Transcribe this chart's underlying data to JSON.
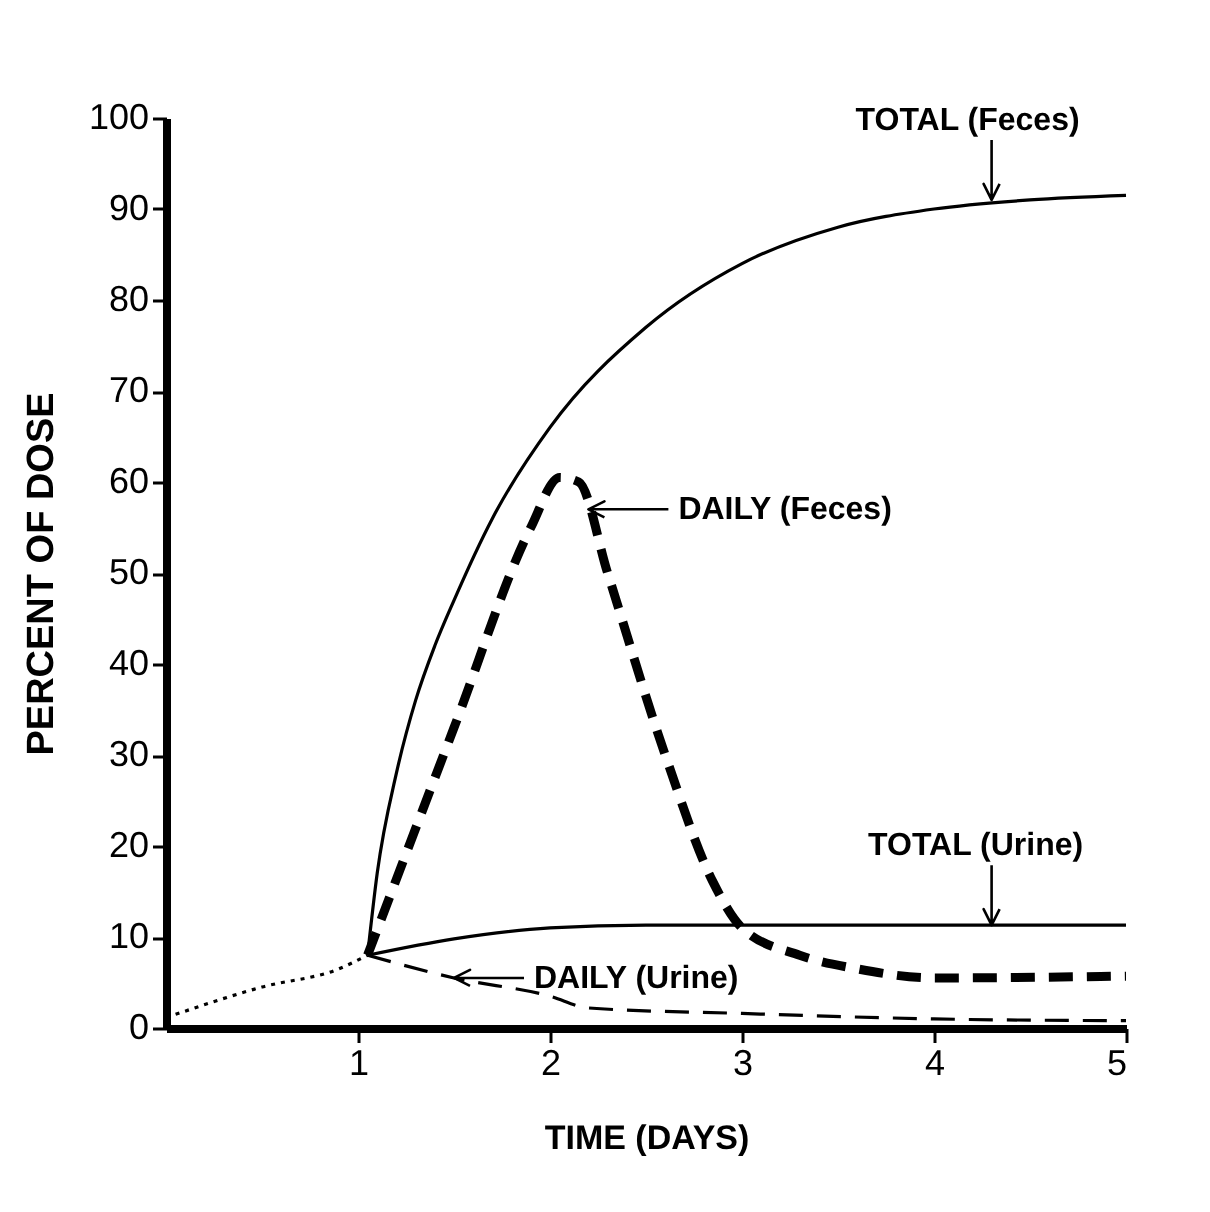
{
  "chart_data": {
    "type": "line",
    "xlabel": "TIME (DAYS)",
    "ylabel": "PERCENT OF DOSE",
    "xlim": [
      0,
      5
    ],
    "xticks": [
      1,
      2,
      3,
      4,
      5
    ],
    "ylim": [
      0,
      100
    ],
    "yticks": [
      0,
      10,
      20,
      30,
      40,
      50,
      60,
      70,
      80,
      90,
      100
    ],
    "grid": false,
    "marker": "none",
    "series": [
      {
        "color": "#000000",
        "line_style": "dotted",
        "x": [
          0.05,
          0.5,
          0.9,
          1.05
        ],
        "values": [
          1.5,
          4.5,
          6.5,
          8
        ]
      },
      {
        "color": "#000000",
        "line_style": "solid",
        "x": [
          1.05,
          1.1,
          1.2,
          1.3,
          1.4,
          1.5,
          1.7,
          2,
          2.5,
          3,
          3.5,
          4,
          4.5,
          5
        ],
        "values": [
          8,
          17,
          28,
          36,
          42,
          47,
          56,
          66,
          77,
          84,
          88,
          90,
          91,
          91.5
        ]
      },
      {
        "color": "#000000",
        "line_style": "dashed",
        "x": [
          1.05,
          1.5,
          1.9,
          2.05,
          2.15,
          2.3,
          2.6,
          2.85,
          3,
          3.3,
          3.6,
          4,
          5
        ],
        "values": [
          8,
          33,
          55,
          60.5,
          60,
          50,
          30,
          16,
          11,
          8,
          6.5,
          5.5,
          5.7
        ]
      },
      {
        "color": "#000000",
        "line_style": "solid",
        "x": [
          1.05,
          1.5,
          2,
          2.5,
          3,
          5
        ],
        "values": [
          8,
          9.8,
          11,
          11.3,
          11.3,
          11.3
        ]
      },
      {
        "color": "#000000",
        "line_style": "dashed",
        "x": [
          1.05,
          1.5,
          2,
          2.2,
          3,
          4,
          5
        ],
        "values": [
          8,
          5.5,
          3.5,
          2.2,
          1.6,
          1,
          0.8
        ]
      }
    ],
    "annotations": [
      {
        "text": "TOTAL (Feces)",
        "x": 4.3,
        "y": 91
      },
      {
        "text": "DAILY (Feces)",
        "x": 2.2,
        "y": 57
      },
      {
        "text": "TOTAL (Urine)",
        "x": 4.3,
        "y": 11.3
      },
      {
        "text": "DAILY (Urine)",
        "x": 1.5,
        "y": 5.5
      }
    ]
  }
}
